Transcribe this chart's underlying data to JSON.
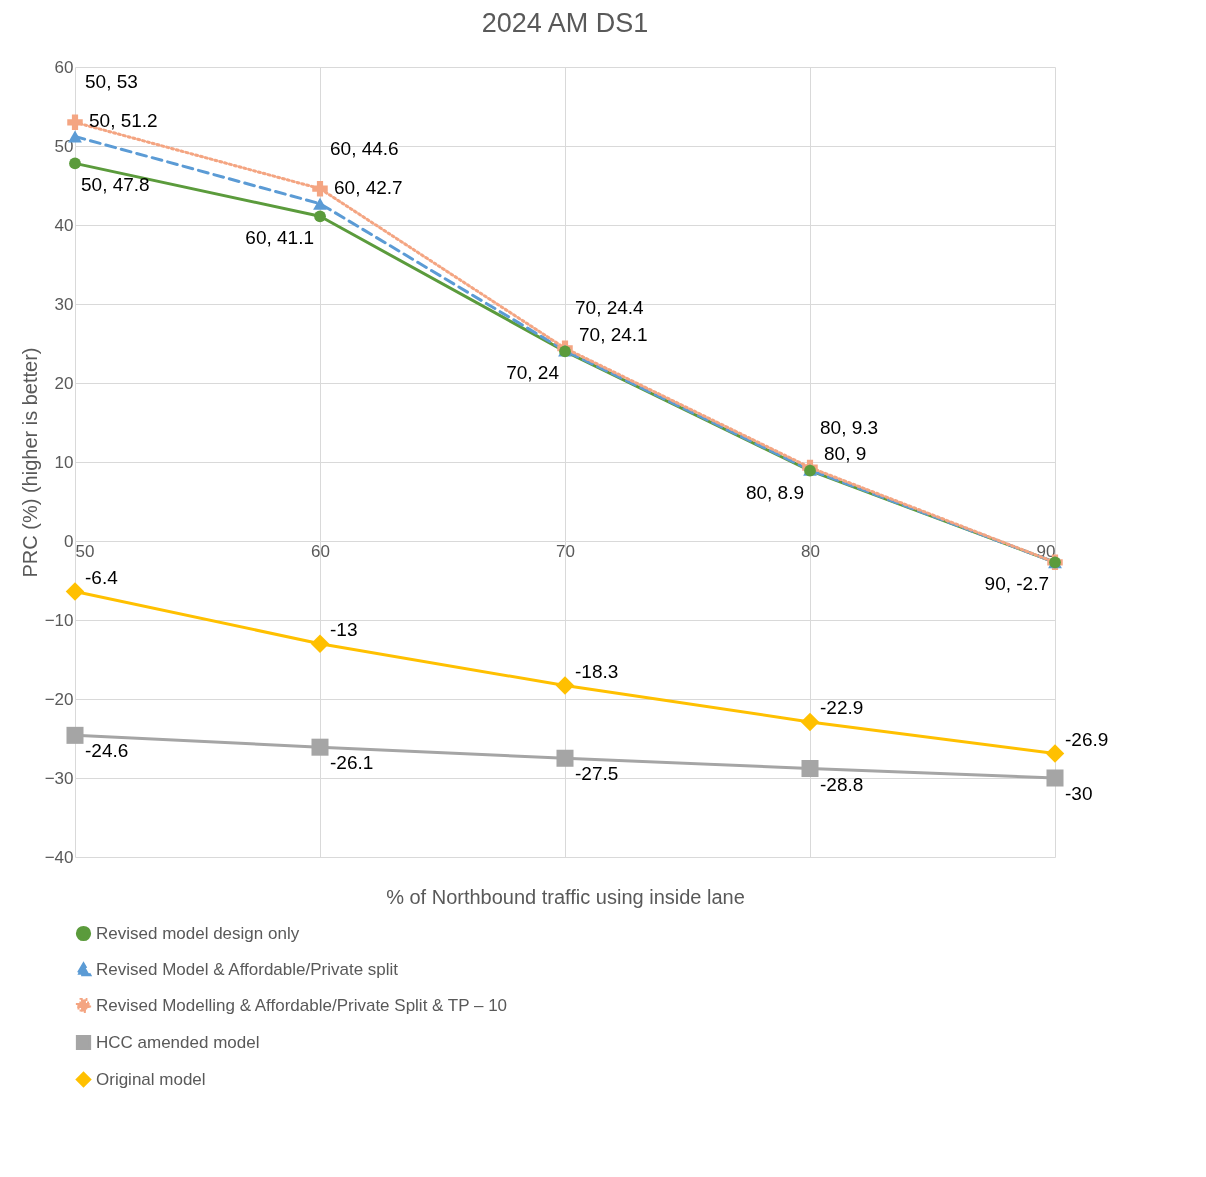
{
  "chart_data": {
    "type": "line",
    "title": "2024 AM DS1",
    "xlabel": "% of Northbound traffic using inside lane",
    "ylabel": "PRC (%) (higher is better)",
    "x": [
      50,
      60,
      70,
      80,
      90
    ],
    "xlim": [
      50,
      90
    ],
    "xticks": [
      50,
      60,
      70,
      80,
      90
    ],
    "ylim": [
      -40,
      60
    ],
    "yticks": [
      -40,
      -30,
      -20,
      -10,
      0,
      10,
      20,
      30,
      40,
      50,
      60
    ],
    "grid": true,
    "legend": "bottom",
    "series": [
      {
        "name": "Revised model design only",
        "color": "#5b9b3c",
        "marker": "circle",
        "line_style": "solid",
        "values": [
          47.8,
          41.1,
          24,
          8.9,
          -2.7
        ],
        "value_labels": [
          "50, 47.8",
          "60, 41.1",
          "70, 24",
          "80, 8.9",
          "90, -2.7"
        ]
      },
      {
        "name": "Revised Model & Affordable/Private split",
        "color": "#5b9bd5",
        "marker": "triangle",
        "line_style": "dashed",
        "values": [
          51.2,
          42.7,
          24.1,
          9,
          -2.7
        ],
        "value_labels": [
          "50, 51.2",
          "60, 42.7",
          "70, 24.1",
          "80, 9",
          null
        ]
      },
      {
        "name": "Revised Modelling & Affordable/Private Split & TP – 10",
        "color": "#f4a582",
        "marker": "cross",
        "line_style": "dotted",
        "values": [
          53,
          44.6,
          24.4,
          9.3,
          -2.7
        ],
        "value_labels": [
          "50, 53",
          "60, 44.6",
          "70, 24.4",
          "80, 9.3",
          null
        ]
      },
      {
        "name": "HCC  amended model",
        "color": "#a5a5a5",
        "marker": "square",
        "line_style": "solid",
        "values": [
          -24.6,
          -26.1,
          -27.5,
          -28.8,
          -30
        ],
        "value_labels": [
          "-24.6",
          "-26.1",
          "-27.5",
          "-28.8",
          "-30"
        ]
      },
      {
        "name": "Original model",
        "color": "#ffc000",
        "marker": "diamond",
        "line_style": "solid",
        "values": [
          -6.4,
          -13,
          -18.3,
          -22.9,
          -26.9
        ],
        "value_labels": [
          "-6.4",
          "-13",
          "-18.3",
          "-22.9",
          "-26.9"
        ]
      }
    ]
  }
}
